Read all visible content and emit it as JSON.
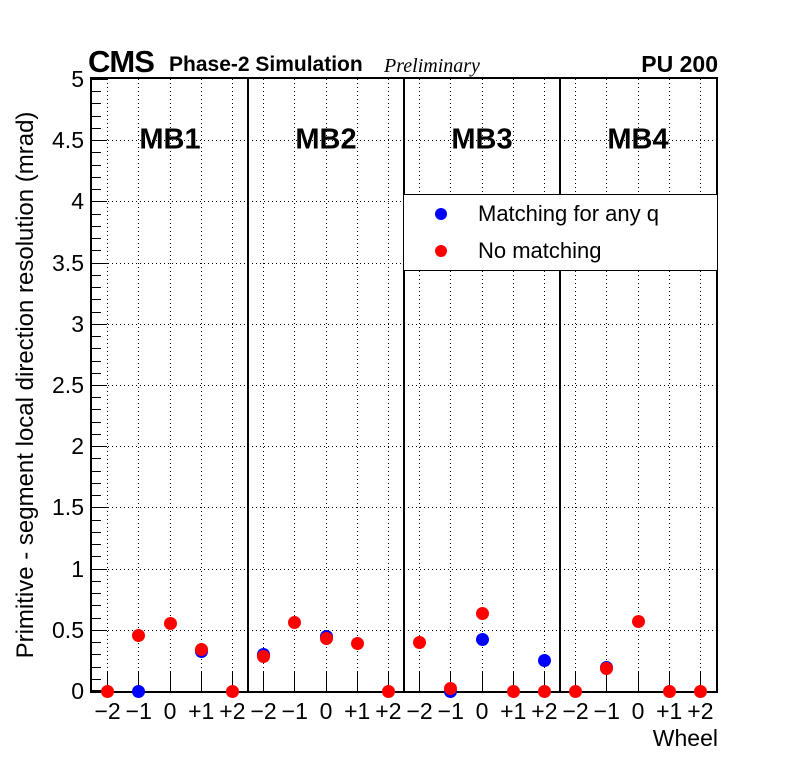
{
  "header": {
    "experiment": "CMS",
    "phase": "Phase-2 Simulation",
    "preliminary": "Preliminary",
    "pileup": "PU 200"
  },
  "chart_data": {
    "type": "scatter",
    "xlabel": "Wheel",
    "ylabel": "Primitive - segment local direction resolution (mrad)",
    "ylim": [
      0,
      5
    ],
    "y_major_tick_values": [
      0,
      0.5,
      1,
      1.5,
      2,
      2.5,
      3,
      3.5,
      4,
      4.5,
      5
    ],
    "y_major_tick_labels": [
      "0",
      "0.5",
      "1",
      "1.5",
      "2",
      "2.5",
      "3",
      "3.5",
      "4",
      "4.5",
      "5"
    ],
    "y_minor_tick_step": 0.1,
    "wheel_tick_labels": [
      "−2",
      "−1",
      "0",
      "+1",
      "+2"
    ],
    "grid": true,
    "legend_position": "upper right",
    "legend": [
      {
        "series": "matching_any_q",
        "label": "Matching for any q",
        "color": "#0000ff"
      },
      {
        "series": "no_matching",
        "label": "No matching",
        "color": "#ff0000"
      }
    ],
    "panels": [
      {
        "label": "MB1",
        "wheels": [
          "−2",
          "−1",
          "0",
          "+1",
          "+2"
        ],
        "series": {
          "matching_any_q": [
            null,
            0.0,
            null,
            0.32,
            null
          ],
          "no_matching": [
            0.0,
            0.45,
            0.55,
            0.34,
            0.0
          ]
        }
      },
      {
        "label": "MB2",
        "wheels": [
          "−2",
          "−1",
          "0",
          "+1",
          "+2"
        ],
        "series": {
          "matching_any_q": [
            0.3,
            null,
            0.445,
            null,
            null
          ],
          "no_matching": [
            0.28,
            0.56,
            0.43,
            0.39,
            0.0
          ]
        }
      },
      {
        "label": "MB3",
        "wheels": [
          "−2",
          "−1",
          "0",
          "+1",
          "+2"
        ],
        "series": {
          "matching_any_q": [
            null,
            0.0,
            0.42,
            null,
            0.25
          ],
          "no_matching": [
            0.4,
            0.02,
            0.63,
            0.0,
            0.0
          ]
        }
      },
      {
        "label": "MB4",
        "wheels": [
          "−2",
          "−1",
          "0",
          "+1",
          "+2"
        ],
        "series": {
          "matching_any_q": [
            null,
            0.19,
            null,
            null,
            null
          ],
          "no_matching": [
            0.0,
            0.18,
            0.57,
            0.0,
            0.0
          ]
        }
      }
    ]
  },
  "colors": {
    "matching_any_q": "#0000ff",
    "no_matching": "#ff0000",
    "frame": "#000000",
    "background": "#ffffff"
  }
}
